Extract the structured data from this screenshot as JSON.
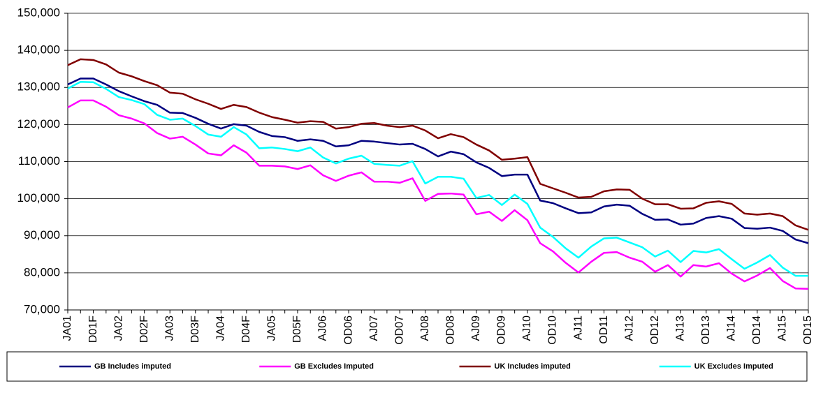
{
  "chart_data": {
    "type": "line",
    "categories": [
      "JA01",
      null,
      "D01F",
      null,
      "JA02",
      null,
      "D02F",
      null,
      "JA03",
      null,
      "D03F",
      null,
      "JA04",
      null,
      "D04F",
      null,
      "JA05",
      null,
      "D05F",
      null,
      "AJ06",
      null,
      "OD06",
      null,
      "AJ07",
      null,
      "OD07",
      null,
      "AJ08",
      null,
      "OD08",
      null,
      "AJ09",
      null,
      "OD09",
      null,
      "AJ10",
      null,
      "OD10",
      null,
      "AJ11",
      null,
      "OD11",
      null,
      "AJ12",
      null,
      "OD12",
      null,
      "AJ13",
      null,
      "OD13",
      null,
      "AJ14",
      null,
      "OD14",
      null,
      "AJ15",
      null,
      "OD15"
    ],
    "series": [
      {
        "name": "GB Includes imputed",
        "color": "#000080",
        "values": [
          130800,
          132400,
          132400,
          130800,
          129000,
          127600,
          126300,
          125300,
          123200,
          123100,
          121800,
          120200,
          118900,
          120100,
          119700,
          118000,
          116900,
          116600,
          115600,
          116000,
          115600,
          114100,
          114400,
          115600,
          115400,
          115000,
          114600,
          114800,
          113400,
          111400,
          112700,
          112000,
          109800,
          108300,
          106100,
          106500,
          106500,
          99500,
          98800,
          97400,
          96100,
          96300,
          97900,
          98400,
          98100,
          95900,
          94300,
          94400,
          93000,
          93300,
          94800,
          95300,
          94600,
          92100,
          91900,
          92200,
          91300,
          89000,
          88000
        ]
      },
      {
        "name": "GB Excludes Imputed",
        "color": "#ff00ff",
        "values": [
          124600,
          126500,
          126500,
          124800,
          122500,
          121600,
          120300,
          117700,
          116200,
          116700,
          114600,
          112200,
          111700,
          114400,
          112400,
          108900,
          108900,
          108700,
          108000,
          109000,
          106300,
          104800,
          106200,
          107100,
          104600,
          104600,
          104300,
          105500,
          99400,
          101300,
          101400,
          101100,
          95800,
          96500,
          94000,
          96900,
          94200,
          88000,
          85800,
          82700,
          80100,
          83000,
          85400,
          85600,
          84100,
          83000,
          80300,
          82100,
          79000,
          82100,
          81700,
          82600,
          79800,
          77700,
          79300,
          81300,
          77800,
          75800,
          75700
        ]
      },
      {
        "name": "UK Includes imputed",
        "color": "#800000",
        "values": [
          136000,
          137600,
          137400,
          136200,
          134000,
          133000,
          131700,
          130600,
          128600,
          128300,
          126800,
          125600,
          124200,
          125300,
          124700,
          123200,
          122000,
          121300,
          120500,
          120900,
          120700,
          118900,
          119300,
          120200,
          120400,
          119700,
          119300,
          119700,
          118400,
          116300,
          117400,
          116600,
          114600,
          113000,
          110500,
          110800,
          111200,
          104000,
          102800,
          101600,
          100300,
          100500,
          102000,
          102500,
          102400,
          100000,
          98500,
          98500,
          97300,
          97400,
          98900,
          99300,
          98600,
          96000,
          95700,
          96000,
          95300,
          92800,
          91600
        ]
      },
      {
        "name": "UK Excludes Imputed",
        "color": "#00ffff",
        "values": [
          129700,
          131500,
          131400,
          129600,
          127400,
          126600,
          125500,
          122600,
          121300,
          121600,
          119600,
          117300,
          116700,
          119300,
          117300,
          113600,
          113800,
          113400,
          112800,
          113800,
          111100,
          109500,
          110800,
          111600,
          109400,
          109100,
          108900,
          110100,
          104100,
          105900,
          105900,
          105400,
          100200,
          101000,
          98300,
          101100,
          98600,
          92200,
          89700,
          86600,
          84100,
          87100,
          89300,
          89500,
          88200,
          86900,
          84400,
          86000,
          82900,
          85900,
          85500,
          86400,
          83700,
          81100,
          82800,
          84800,
          81400,
          79200,
          79200
        ]
      }
    ],
    "ylim": [
      70000,
      150000
    ],
    "yticks": [
      {
        "value": 70000,
        "label": "70,000"
      },
      {
        "value": 80000,
        "label": "80,000"
      },
      {
        "value": 90000,
        "label": "90,000"
      },
      {
        "value": 100000,
        "label": "100,000"
      },
      {
        "value": 110000,
        "label": "110,000"
      },
      {
        "value": 120000,
        "label": "120,000"
      },
      {
        "value": 130000,
        "label": "130,000"
      },
      {
        "value": 140000,
        "label": "140,000"
      },
      {
        "value": 150000,
        "label": "150,000"
      }
    ],
    "grid": true,
    "legend": "bottom"
  }
}
